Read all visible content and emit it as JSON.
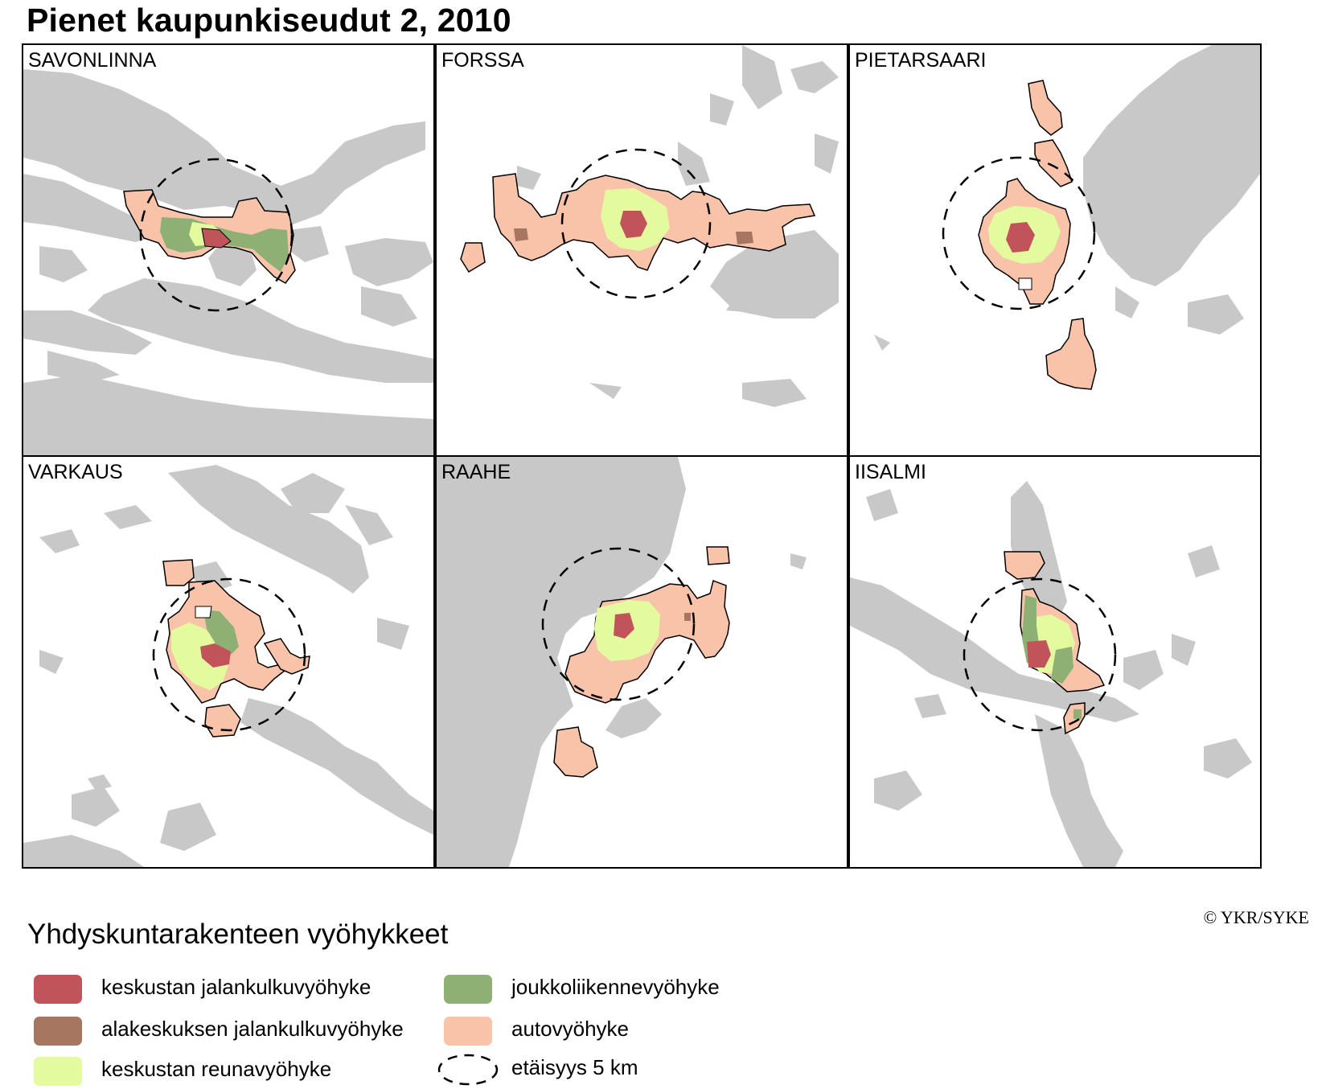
{
  "title": "Pienet kaupunkiseudut 2, 2010",
  "credit": "© YKR/SYKE",
  "panels": [
    {
      "name": "SAVONLINNA"
    },
    {
      "name": "FORSSA"
    },
    {
      "name": "PIETARSAARI"
    },
    {
      "name": "VARKAUS"
    },
    {
      "name": "RAAHE"
    },
    {
      "name": "IISALMI"
    }
  ],
  "legend": {
    "title": "Yhdyskuntarakenteen vyöhykkeet",
    "items": [
      {
        "label": "keskustan jalankulkuvyöhyke",
        "color": "#c0545a"
      },
      {
        "label": "alakeskuksen jalankulkuvyöhyke",
        "color": "#a67660"
      },
      {
        "label": "keskustan reunavyöhyke",
        "color": "#e3fb9e"
      },
      {
        "label": "joukkoliikennevyöhyke",
        "color": "#8fb075"
      },
      {
        "label": "autovyöhyke",
        "color": "#f9c3a9"
      },
      {
        "label": "etäisyys 5 km",
        "color": "#000000",
        "style": "dashed-circle"
      }
    ]
  },
  "colors": {
    "water": "#c8c8c8",
    "outline": "#000000"
  }
}
